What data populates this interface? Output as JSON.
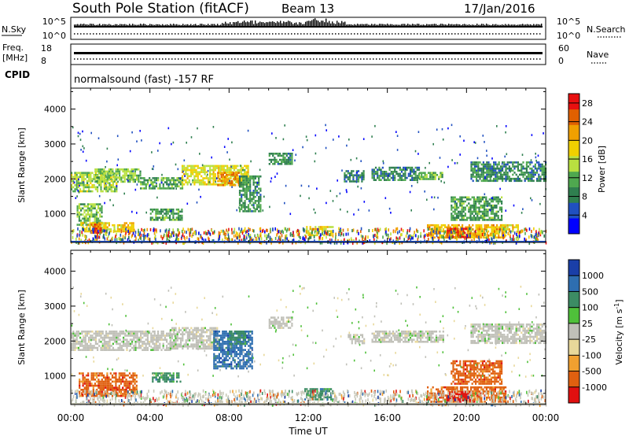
{
  "header": {
    "station": "South Pole Station (fitACF)",
    "beam": "Beam 13",
    "date": "17/Jan/2016"
  },
  "sky_panel": {
    "left_label": "N.Sky",
    "left_ticks": [
      "10^5",
      "10^0"
    ],
    "right_ticks": [
      "10^5",
      "10^0"
    ],
    "right_label": "N.Search"
  },
  "freq_panel": {
    "left_label_line1": "Freq.",
    "left_label_line2": "[MHz]",
    "left_ticks": [
      "18",
      "8"
    ],
    "right_ticks": [
      "60",
      "0"
    ],
    "right_label": "Nave"
  },
  "cpid_panel": {
    "label": "CPID",
    "text": "normalsound (fast) -157 RF"
  },
  "x_axis": {
    "title": "Time UT",
    "ticks": [
      "00:00",
      "04:00",
      "08:00",
      "12:00",
      "16:00",
      "20:00",
      "00:00"
    ]
  },
  "chart_data": [
    {
      "type": "heatmap",
      "name": "power",
      "ylabel": "Slant Range [km]",
      "ylim": [
        180,
        4600
      ],
      "yticks": [
        1000,
        2000,
        3000,
        4000
      ],
      "xlim": [
        0,
        24
      ],
      "colorbar": {
        "label": "Power [dB]",
        "tick_labels": [
          "4",
          "8",
          "12",
          "16",
          "20",
          "24",
          "28"
        ],
        "range": [
          0,
          30
        ],
        "colors": [
          "#0000ff",
          "#2050c0",
          "#2f7f4f",
          "#4fa84f",
          "#b8e040",
          "#f0d000",
          "#f0a000",
          "#e06000",
          "#e81010"
        ]
      },
      "regions": [
        {
          "t0": 0.0,
          "t1": 2.3,
          "r0": 1650,
          "r1": 2200,
          "level": 14
        },
        {
          "t0": 1.2,
          "t1": 3.5,
          "r0": 1900,
          "r1": 2300,
          "level": 13
        },
        {
          "t0": 3.5,
          "t1": 5.6,
          "r0": 1700,
          "r1": 2050,
          "level": 11
        },
        {
          "t0": 5.6,
          "t1": 9.0,
          "r0": 1850,
          "r1": 2400,
          "level": 17
        },
        {
          "t0": 7.4,
          "t1": 8.6,
          "r0": 1800,
          "r1": 2200,
          "level": 24
        },
        {
          "t0": 8.5,
          "t1": 9.6,
          "r0": 1100,
          "r1": 2100,
          "level": 9
        },
        {
          "t0": 0.3,
          "t1": 1.6,
          "r0": 700,
          "r1": 1300,
          "level": 12
        },
        {
          "t0": 0.5,
          "t1": 3.2,
          "r0": 480,
          "r1": 760,
          "level": 19
        },
        {
          "t0": 1.0,
          "t1": 1.5,
          "r0": 480,
          "r1": 720,
          "level": 27
        },
        {
          "t0": 4.0,
          "t1": 5.6,
          "r0": 850,
          "r1": 1150,
          "level": 10
        },
        {
          "t0": 10.0,
          "t1": 11.2,
          "r0": 2400,
          "r1": 2750,
          "level": 9
        },
        {
          "t0": 11.8,
          "t1": 13.2,
          "r0": 400,
          "r1": 650,
          "level": 18
        },
        {
          "t0": 13.8,
          "t1": 14.8,
          "r0": 1950,
          "r1": 2250,
          "level": 7
        },
        {
          "t0": 15.2,
          "t1": 17.6,
          "r0": 1950,
          "r1": 2350,
          "level": 8
        },
        {
          "t0": 17.6,
          "t1": 18.8,
          "r0": 2000,
          "r1": 2200,
          "level": 12
        },
        {
          "t0": 18.0,
          "t1": 22.0,
          "r0": 300,
          "r1": 700,
          "level": 21
        },
        {
          "t0": 19.0,
          "t1": 20.2,
          "r0": 320,
          "r1": 600,
          "level": 28
        },
        {
          "t0": 21.6,
          "t1": 22.6,
          "r0": 500,
          "r1": 700,
          "level": 18
        },
        {
          "t0": 19.2,
          "t1": 21.8,
          "r0": 800,
          "r1": 1500,
          "level": 10
        },
        {
          "t0": 20.2,
          "t1": 24.0,
          "r0": 1950,
          "r1": 2500,
          "level": 8
        }
      ]
    },
    {
      "type": "heatmap",
      "name": "velocity",
      "ylabel": "Slant Range [km]",
      "ylim": [
        180,
        4600
      ],
      "yticks": [
        1000,
        2000,
        3000,
        4000
      ],
      "xlim": [
        0,
        24
      ],
      "colorbar": {
        "label": "Velocity [m s^-1]",
        "tick_labels": [
          "1000",
          "500",
          "100",
          "25",
          "-25",
          "-100",
          "-500",
          "-1000"
        ],
        "colors": [
          "#1a3fa8",
          "#2e6eb0",
          "#3c8c64",
          "#4fc03a",
          "#c0c0b8",
          "#e8d89a",
          "#f0a030",
          "#e06010",
          "#e01010"
        ]
      },
      "regions": [
        {
          "t0": 0.0,
          "t1": 5.0,
          "r0": 1750,
          "r1": 2300,
          "class": 4
        },
        {
          "t0": 5.0,
          "t1": 7.4,
          "r0": 1800,
          "r1": 2400,
          "class": 4
        },
        {
          "t0": 7.2,
          "t1": 9.2,
          "r0": 1200,
          "r1": 2300,
          "class": 1
        },
        {
          "t0": 8.0,
          "t1": 8.8,
          "r0": 1900,
          "r1": 2300,
          "class": 2
        },
        {
          "t0": 0.4,
          "t1": 3.3,
          "r0": 450,
          "r1": 1100,
          "class": 7
        },
        {
          "t0": 4.1,
          "t1": 5.5,
          "r0": 850,
          "r1": 1100,
          "class": 2
        },
        {
          "t0": 10.0,
          "t1": 11.2,
          "r0": 2400,
          "r1": 2700,
          "class": 4
        },
        {
          "t0": 11.8,
          "t1": 13.2,
          "r0": 350,
          "r1": 650,
          "class": 2
        },
        {
          "t0": 14.0,
          "t1": 14.8,
          "r0": 1950,
          "r1": 2200,
          "class": 4
        },
        {
          "t0": 15.2,
          "t1": 18.8,
          "r0": 1950,
          "r1": 2300,
          "class": 4
        },
        {
          "t0": 18.0,
          "t1": 22.0,
          "r0": 280,
          "r1": 700,
          "class": 7
        },
        {
          "t0": 19.0,
          "t1": 20.2,
          "r0": 300,
          "r1": 560,
          "class": 8
        },
        {
          "t0": 19.2,
          "t1": 21.8,
          "r0": 800,
          "r1": 1450,
          "class": 7
        },
        {
          "t0": 20.2,
          "t1": 24.0,
          "r0": 1950,
          "r1": 2500,
          "class": 4
        }
      ]
    }
  ]
}
